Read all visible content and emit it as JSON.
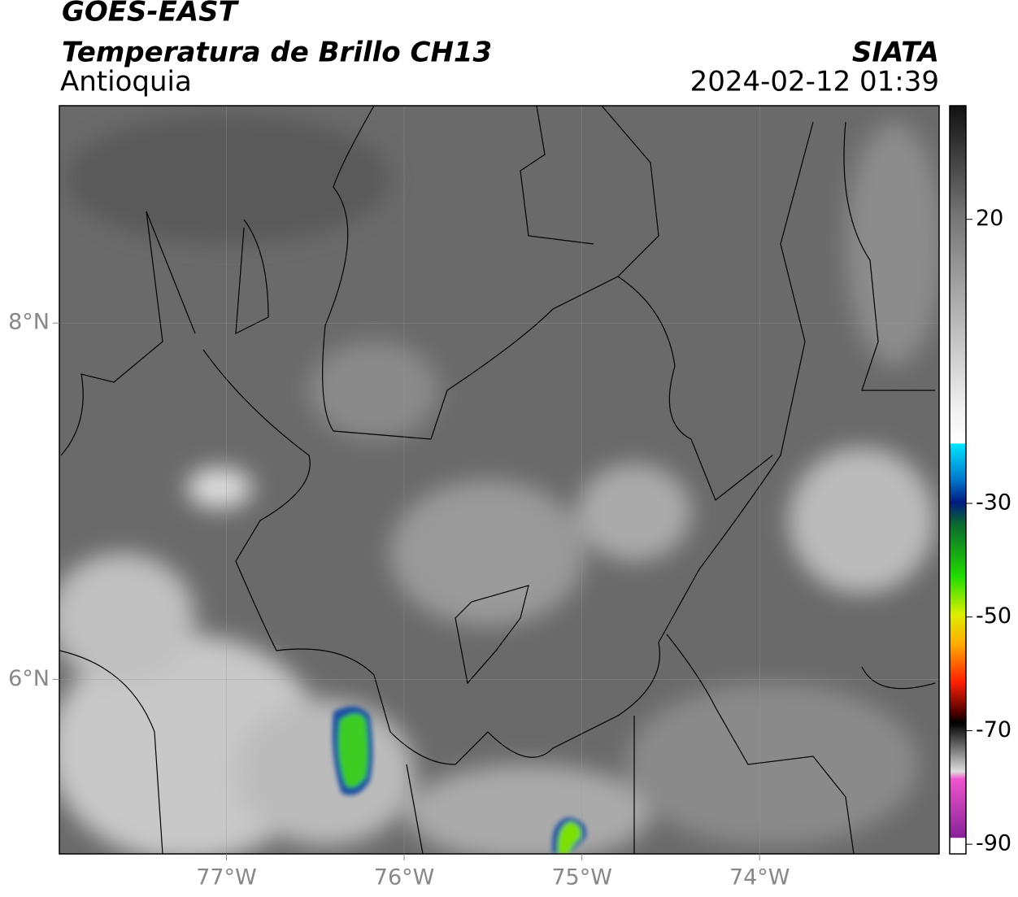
{
  "header": {
    "title": "GOES-EAST",
    "subtitle": "Temperatura de Brillo CH13",
    "region": "Antioquia",
    "agency": "SIATA",
    "datetime": "2024-02-12 01:39"
  },
  "map": {
    "lonlim": [
      -77.94,
      -72.99
    ],
    "latlim": [
      5.02,
      9.22
    ],
    "lon_ticks": [
      {
        "value": -77,
        "label": "77°W"
      },
      {
        "value": -76,
        "label": "76°W"
      },
      {
        "value": -75,
        "label": "75°W"
      },
      {
        "value": -74,
        "label": "74°W"
      }
    ],
    "lat_ticks": [
      {
        "value": 8,
        "label": "8°N"
      },
      {
        "value": 6,
        "label": "6°N"
      }
    ]
  },
  "colorbar": {
    "lim": [
      -91.7,
      40
    ],
    "ticks": [
      20,
      -30,
      -50,
      -70,
      -90
    ]
  }
}
